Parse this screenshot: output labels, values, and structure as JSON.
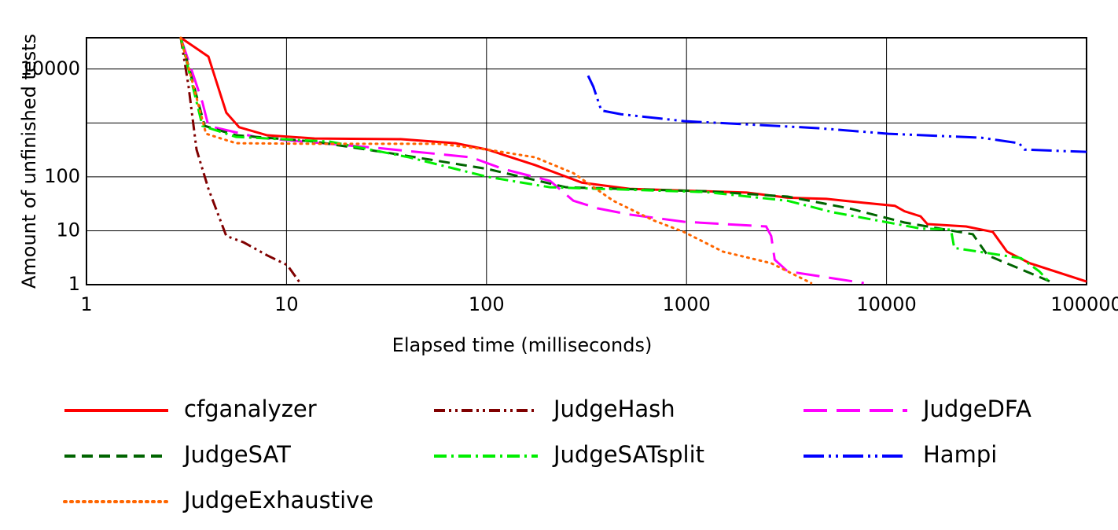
{
  "chart_data": {
    "type": "line",
    "x_label": "Elapsed time (milliseconds)",
    "y_label": "Amount of unfinished tests",
    "xscale": "log",
    "yscale": "log",
    "grid": true,
    "xlim": [
      1,
      100000
    ],
    "xticks": [
      1,
      10,
      100,
      1000,
      10000,
      100000
    ],
    "ylim": [
      1,
      38000
    ],
    "yticks": [
      1,
      10,
      100,
      {
        "value": 1000,
        "label": null
      },
      10000
    ],
    "series": [
      {
        "name": "cfganalyzer",
        "color": "#ff0000",
        "dash": "solid",
        "x": [
          2.96,
          4.07,
          5.0,
          5.8,
          8.0,
          13.8,
          37.5,
          70,
          101,
          175,
          300,
          518,
          1260,
          2000,
          3200,
          5000,
          7700,
          11000,
          12300,
          14800,
          16000,
          25000,
          34000,
          40000,
          52000,
          100000
        ],
        "values": [
          38000,
          17000,
          1550,
          830,
          590,
          515,
          500,
          420,
          320,
          165,
          78,
          60,
          54,
          51,
          41,
          39,
          33,
          29,
          23,
          18.5,
          13.3,
          12,
          9.5,
          4.1,
          2.5,
          1.14
        ]
      },
      {
        "name": "JudgeHash",
        "color": "#800000",
        "dash": "dashdotdot",
        "x": [
          2.96,
          3.24,
          3.55,
          4.07,
          5.0,
          6.1,
          8.0,
          10.1,
          11.7
        ],
        "values": [
          38000,
          4700,
          320,
          60,
          8,
          6.1,
          3.5,
          2.3,
          1.07
        ]
      },
      {
        "name": "JudgeDFA",
        "color": "#ff00ff",
        "dash": "longdash",
        "x": [
          2.96,
          3.8,
          4.07,
          7.3,
          28,
          84,
          121,
          208,
          272,
          360,
          518,
          970,
          2500,
          2650,
          2760,
          3200,
          7700
        ],
        "values": [
          38000,
          2400,
          880,
          530,
          345,
          230,
          140,
          84,
          36,
          26,
          20,
          14.7,
          12,
          8,
          2.9,
          1.77,
          1.07
        ]
      },
      {
        "name": "JudgeSAT",
        "color": "#006400",
        "dash": "dash",
        "x": [
          2.96,
          3.9,
          5.6,
          13.8,
          34,
          101,
          250,
          1260,
          3200,
          6500,
          12300,
          27000,
          32000,
          66000
        ],
        "values": [
          38000,
          880,
          590,
          450,
          270,
          140,
          64,
          54,
          43,
          26,
          14.2,
          8.6,
          3.5,
          1.14
        ]
      },
      {
        "name": "JudgeSATsplit",
        "color": "#00ee00",
        "dash": "dashdot",
        "x": [
          2.96,
          3.8,
          5.6,
          16.5,
          41,
          101,
          208,
          1260,
          3200,
          5400,
          14800,
          21000,
          21800,
          47000,
          58000,
          66000
        ],
        "values": [
          38000,
          880,
          550,
          450,
          230,
          100,
          64,
          52,
          36,
          22,
          11,
          10.5,
          4.8,
          3.1,
          1.77,
          1.07
        ]
      },
      {
        "name": "Hampi",
        "color": "#0000ff",
        "dash": "longdashdotdot",
        "x": [
          322,
          342,
          375,
          470,
          970,
          2000,
          4540,
          10200,
          30000,
          46000,
          49000,
          100000
        ],
        "values": [
          7500,
          4700,
          1700,
          1450,
          1080,
          940,
          800,
          630,
          530,
          420,
          320,
          290
        ]
      },
      {
        "name": "JudgeExhaustive",
        "color": "#ff6600",
        "dash": "dot",
        "x": [
          2.96,
          3.96,
          5.6,
          13.8,
          58,
          101,
          175,
          272,
          430,
          680,
          970,
          1520,
          2650,
          4200
        ],
        "values": [
          38000,
          630,
          420,
          410,
          410,
          320,
          230,
          117,
          36,
          15.7,
          9.5,
          4.1,
          2.5,
          1.07
        ]
      }
    ]
  }
}
